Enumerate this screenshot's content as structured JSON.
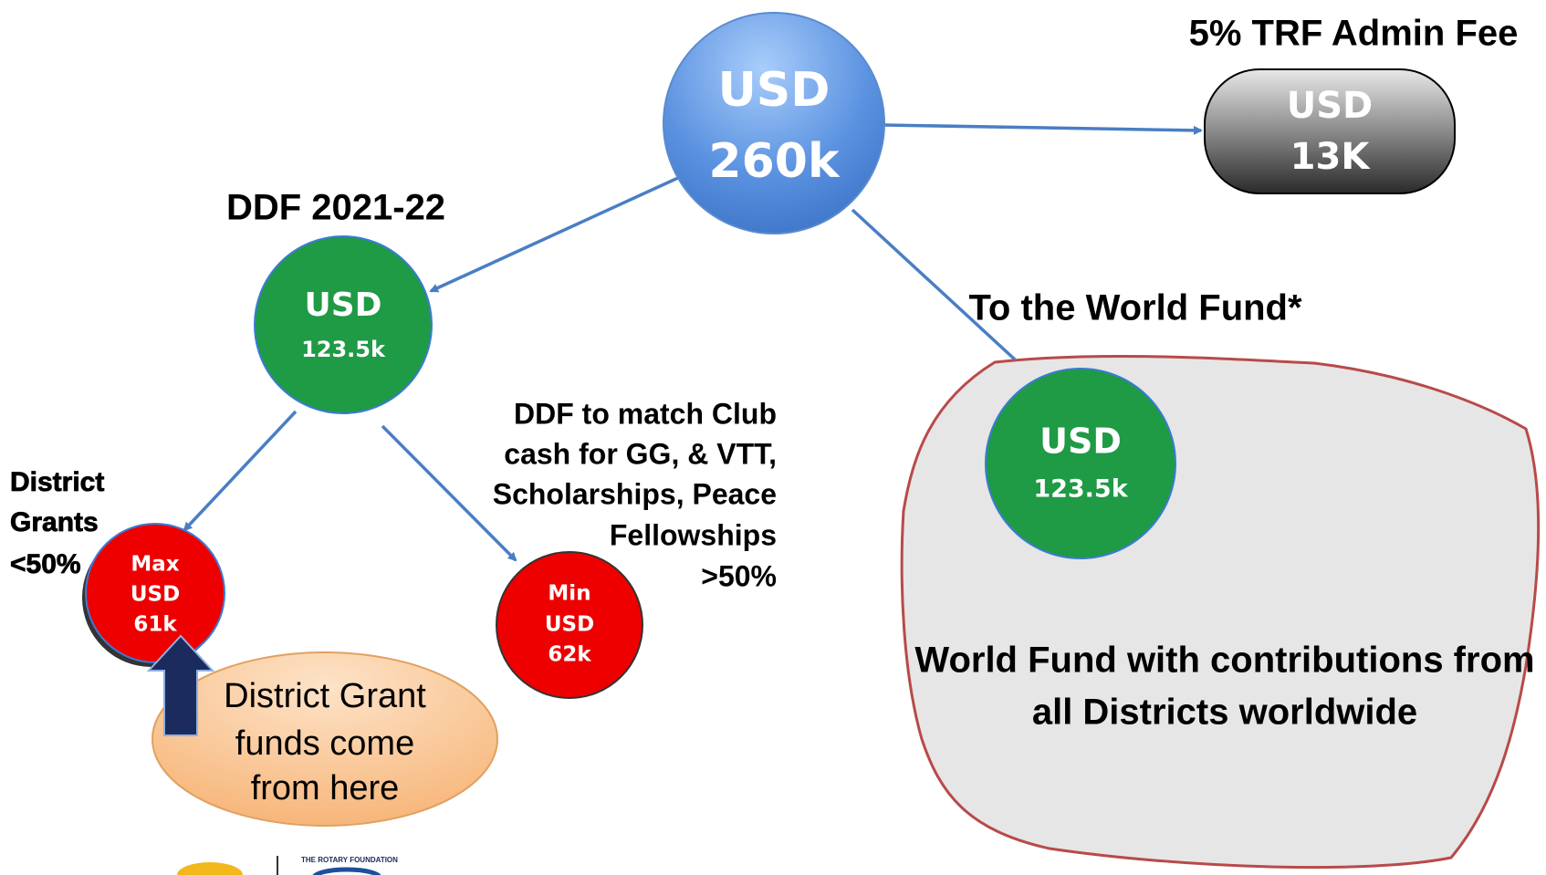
{
  "top_node": {
    "lines": [
      "USD",
      "260k"
    ]
  },
  "admin_fee": {
    "title": "5% TRF Admin Fee",
    "lines": [
      "USD",
      "13K"
    ]
  },
  "ddf": {
    "title": "DDF 2021-22",
    "lines": [
      "USD",
      "123.5k"
    ]
  },
  "district_grants": {
    "label": [
      "District",
      "Grants",
      "<50%"
    ],
    "lines": [
      "Max",
      "USD",
      "61k"
    ]
  },
  "match": {
    "label": [
      "DDF to match Club",
      "cash for GG, & VTT,",
      "Scholarships, Peace",
      "Fellowships",
      ">50%"
    ],
    "lines": [
      "Min",
      "USD",
      "62k"
    ]
  },
  "callout": {
    "lines": [
      "District Grant",
      "funds come",
      "from here"
    ]
  },
  "world_fund": {
    "title": "To the World Fund*",
    "lines": [
      "USD",
      "123.5k"
    ],
    "caption": [
      "World Fund with contributions from",
      "all Districts worldwide"
    ]
  },
  "footer": {
    "foundation": "THE ROTARY FOUNDATION"
  }
}
